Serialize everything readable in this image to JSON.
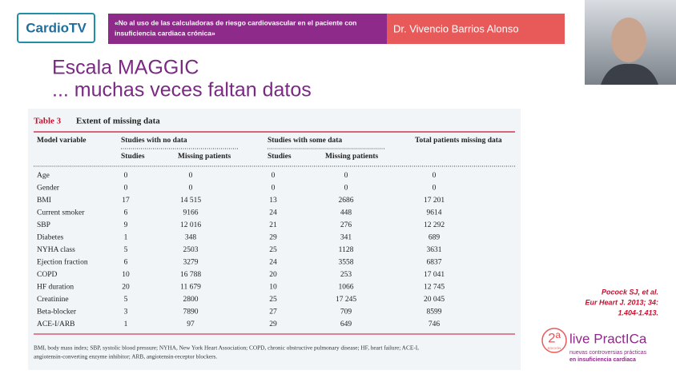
{
  "header": {
    "logo": "CardioTV",
    "talk_title": [
      "«No al uso de las calculadoras de riesgo cardiovascular en el paciente con",
      "insuficiencia cardiaca crónica»"
    ],
    "speaker": "Dr. Vivencio Barrios Alonso"
  },
  "slide_title": [
    "Escala MAGGIC",
    "... muchas veces faltan datos"
  ],
  "table": {
    "label": "Table 3",
    "caption": "Extent of missing data",
    "headers": [
      "Model variable",
      "Studies with no data",
      "Studies with some data",
      "Total patients missing data"
    ],
    "subheaders": [
      "Studies",
      "Missing patients",
      "Studies",
      "Missing patients"
    ],
    "rows": [
      [
        "Age",
        "0",
        "0",
        "0",
        "0",
        "0"
      ],
      [
        "Gender",
        "0",
        "0",
        "0",
        "0",
        "0"
      ],
      [
        "BMI",
        "17",
        "14 515",
        "13",
        "2686",
        "17 201"
      ],
      [
        "Current smoker",
        "6",
        "9166",
        "24",
        "448",
        "9614"
      ],
      [
        "SBP",
        "9",
        "12 016",
        "21",
        "276",
        "12 292"
      ],
      [
        "Diabetes",
        "1",
        "348",
        "29",
        "341",
        "689"
      ],
      [
        "NYHA class",
        "5",
        "2503",
        "25",
        "1128",
        "3631"
      ],
      [
        "Ejection fraction",
        "6",
        "3279",
        "24",
        "3558",
        "6837"
      ],
      [
        "COPD",
        "10",
        "16 788",
        "20",
        "253",
        "17 041"
      ],
      [
        "HF duration",
        "20",
        "11 679",
        "10",
        "1066",
        "12 745"
      ],
      [
        "Creatinine",
        "5",
        "2800",
        "25",
        "17 245",
        "20 045"
      ],
      [
        "Beta-blocker",
        "3",
        "7890",
        "27",
        "709",
        "8599"
      ],
      [
        "ACE-I/ARB",
        "1",
        "97",
        "29",
        "649",
        "746"
      ]
    ],
    "footnote": [
      "BMI, body mass index; SBP, systolic blood pressure; NYHA, New York Heart Association; COPD, chronic obstructive pulmonary disease; HF, heart failure; ACE-I,",
      "angiotensin-converting enzyme inhibitor; ARB, angiotensin-receptor blockers."
    ]
  },
  "reference": [
    "Pocock SJ, et al.",
    "Eur Heart J. 2013; 34:",
    "1.404-1.413."
  ],
  "event": {
    "edition": "2ª",
    "edition_word": "EDICIÓN",
    "name": "live PractICa",
    "tagline": [
      "nuevas controversias prácticas",
      "en insuficiencia cardiaca"
    ]
  }
}
